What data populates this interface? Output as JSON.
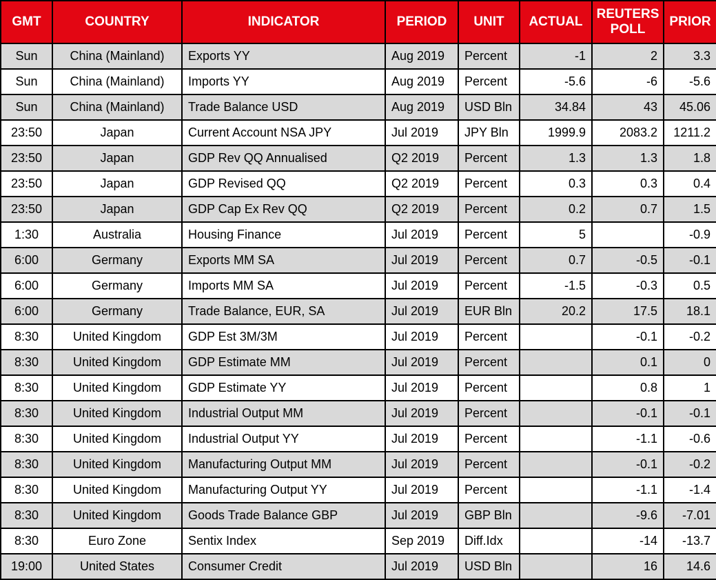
{
  "colors": {
    "header-bg": "#e30613",
    "header-text": "#ffffff",
    "row-alt-bg": "#d9d9d9",
    "row-bg": "#ffffff",
    "border": "#000000",
    "body-text": "#000000"
  },
  "chart_data": {
    "type": "table",
    "title": "",
    "columns": [
      {
        "key": "gmt",
        "label": "GMT",
        "align": "center"
      },
      {
        "key": "country",
        "label": "COUNTRY",
        "align": "center"
      },
      {
        "key": "indicator",
        "label": "INDICATOR",
        "align": "left"
      },
      {
        "key": "period",
        "label": "PERIOD",
        "align": "left"
      },
      {
        "key": "unit",
        "label": "UNIT",
        "align": "left"
      },
      {
        "key": "actual",
        "label": "ACTUAL",
        "align": "right"
      },
      {
        "key": "reuters-poll",
        "label": "REUTERS POLL",
        "align": "right"
      },
      {
        "key": "prior",
        "label": "PRIOR",
        "align": "right"
      }
    ],
    "rows": [
      [
        "Sun",
        "China (Mainland)",
        "Exports YY",
        "Aug 2019",
        "Percent",
        "-1",
        "2",
        "3.3"
      ],
      [
        "Sun",
        "China (Mainland)",
        "Imports YY",
        "Aug 2019",
        "Percent",
        "-5.6",
        "-6",
        "-5.6"
      ],
      [
        "Sun",
        "China (Mainland)",
        "Trade Balance USD",
        "Aug 2019",
        "USD Bln",
        "34.84",
        "43",
        "45.06"
      ],
      [
        "23:50",
        "Japan",
        "Current Account NSA JPY",
        "Jul 2019",
        "JPY Bln",
        "1999.9",
        "2083.2",
        "1211.2"
      ],
      [
        "23:50",
        "Japan",
        "GDP Rev QQ Annualised",
        "Q2 2019",
        "Percent",
        "1.3",
        "1.3",
        "1.8"
      ],
      [
        "23:50",
        "Japan",
        "GDP Revised QQ",
        "Q2 2019",
        "Percent",
        "0.3",
        "0.3",
        "0.4"
      ],
      [
        "23:50",
        "Japan",
        "GDP Cap Ex Rev QQ",
        "Q2 2019",
        "Percent",
        "0.2",
        "0.7",
        "1.5"
      ],
      [
        "1:30",
        "Australia",
        "Housing Finance",
        "Jul 2019",
        "Percent",
        "5",
        "",
        "-0.9"
      ],
      [
        "6:00",
        "Germany",
        "Exports MM SA",
        "Jul 2019",
        "Percent",
        "0.7",
        "-0.5",
        "-0.1"
      ],
      [
        "6:00",
        "Germany",
        "Imports MM SA",
        "Jul 2019",
        "Percent",
        "-1.5",
        "-0.3",
        "0.5"
      ],
      [
        "6:00",
        "Germany",
        "Trade Balance, EUR, SA",
        "Jul 2019",
        "EUR Bln",
        "20.2",
        "17.5",
        "18.1"
      ],
      [
        "8:30",
        "United Kingdom",
        "GDP Est 3M/3M",
        "Jul 2019",
        "Percent",
        "",
        "-0.1",
        "-0.2"
      ],
      [
        "8:30",
        "United Kingdom",
        "GDP Estimate MM",
        "Jul 2019",
        "Percent",
        "",
        "0.1",
        "0"
      ],
      [
        "8:30",
        "United Kingdom",
        "GDP Estimate YY",
        "Jul 2019",
        "Percent",
        "",
        "0.8",
        "1"
      ],
      [
        "8:30",
        "United Kingdom",
        "Industrial Output MM",
        "Jul 2019",
        "Percent",
        "",
        "-0.1",
        "-0.1"
      ],
      [
        "8:30",
        "United Kingdom",
        "Industrial Output YY",
        "Jul 2019",
        "Percent",
        "",
        "-1.1",
        "-0.6"
      ],
      [
        "8:30",
        "United Kingdom",
        "Manufacturing Output MM",
        "Jul 2019",
        "Percent",
        "",
        "-0.1",
        "-0.2"
      ],
      [
        "8:30",
        "United Kingdom",
        "Manufacturing Output YY",
        "Jul 2019",
        "Percent",
        "",
        "-1.1",
        "-1.4"
      ],
      [
        "8:30",
        "United Kingdom",
        "Goods Trade Balance GBP",
        "Jul 2019",
        "GBP Bln",
        "",
        "-9.6",
        "-7.01"
      ],
      [
        "8:30",
        "Euro Zone",
        "Sentix Index",
        "Sep 2019",
        "Diff.Idx",
        "",
        "-14",
        "-13.7"
      ],
      [
        "19:00",
        "United States",
        "Consumer Credit",
        "Jul 2019",
        "USD Bln",
        "",
        "16",
        "14.6"
      ]
    ]
  }
}
